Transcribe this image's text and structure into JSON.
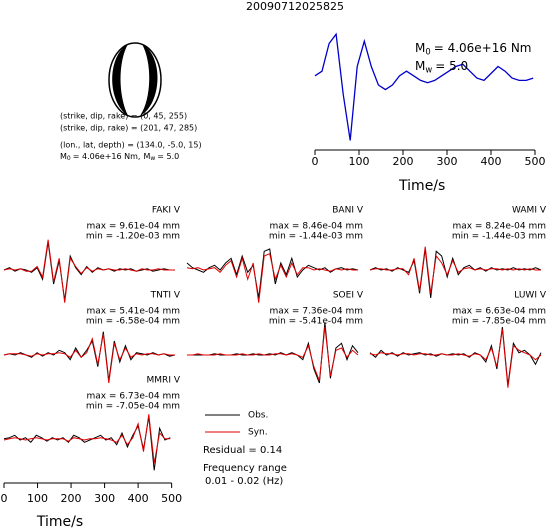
{
  "title": "20090712025825",
  "mechanism": {
    "lines": [
      "(strike, dip, rake) = (0, 45, 255)",
      "(strike, dip, rake) = (201, 47, 285)",
      "(lon., lat, depth) = (134.0, -5.0, 15)"
    ],
    "moment": [
      {
        "symbol": "M",
        "sub": "0",
        "text": "= 4.06e+16 Nm,"
      },
      {
        "symbol": "M",
        "sub": "w",
        "text": "= 5.0"
      }
    ]
  },
  "chart_data": [
    {
      "type": "line",
      "xlabel": "Time/s",
      "xlim": [
        0,
        510
      ],
      "xticks": [
        0,
        100,
        200,
        300,
        400,
        500
      ],
      "ylim": [
        -1.4,
        1.2
      ],
      "x": [
        0,
        16,
        32,
        48,
        64,
        80,
        96,
        112,
        128,
        144,
        160,
        176,
        192,
        208,
        224,
        240,
        256,
        272,
        288,
        304,
        320,
        336,
        352,
        368,
        384,
        400,
        416,
        432,
        448,
        464,
        480,
        496
      ],
      "series": [
        {
          "color": "#0000cc",
          "values": [
            0.1,
            0.2,
            0.8,
            1.0,
            -0.3,
            -1.3,
            0.3,
            0.85,
            0.3,
            -0.1,
            -0.2,
            -0.1,
            0.1,
            0.2,
            0.1,
            0.0,
            -0.05,
            0.0,
            0.1,
            0.2,
            0.3,
            0.35,
            0.2,
            0.05,
            0.0,
            0.15,
            0.3,
            0.2,
            0.05,
            0.0,
            0.0,
            0.05
          ]
        }
      ],
      "annotations": [
        {
          "symbol": "M",
          "sub": "0",
          "text": "= 4.06e+16 Nm"
        },
        {
          "symbol": "M",
          "sub": "w",
          "text": "= 5.0"
        }
      ]
    },
    {
      "type": "waveform",
      "station": "FAKI V",
      "max_label": "max = 9.61e-04 mm",
      "min_label": "min = -1.20e-03 mm",
      "ylim": [
        -1.5,
        1.5
      ],
      "series": [
        {
          "name": "Obs.",
          "color": "#000000",
          "values": [
            0,
            0.1,
            -0.05,
            0.05,
            0,
            -0.1,
            0.1,
            -0.4,
            1.2,
            -0.6,
            0.4,
            -1.3,
            0.6,
            0.1,
            -0.2,
            0.15,
            -0.1,
            0.1,
            0,
            0.05,
            -0.05,
            0.05,
            0,
            0.05,
            -0.05,
            0,
            0.05,
            -0.05,
            0,
            0.05,
            0,
            0
          ]
        },
        {
          "name": "Syn.",
          "color": "#e00000",
          "values": [
            0,
            0.05,
            0,
            0.05,
            -0.05,
            -0.05,
            0.15,
            -0.3,
            1.3,
            -0.5,
            0.5,
            -1.4,
            0.5,
            0.15,
            -0.15,
            0.1,
            -0.05,
            0.05,
            0,
            0.05,
            0,
            0,
            0.05,
            0,
            -0.05,
            0.05,
            0,
            0,
            0.05,
            0,
            0,
            0
          ]
        }
      ]
    },
    {
      "type": "waveform",
      "station": "BANI V",
      "max_label": "max = 8.46e-04 mm",
      "min_label": "min = -1.44e-03 mm",
      "ylim": [
        -1.5,
        1.5
      ],
      "series": [
        {
          "name": "Obs.",
          "color": "#000000",
          "values": [
            0.3,
            0.1,
            0,
            -0.1,
            0.1,
            0.2,
            0,
            0.3,
            0.5,
            -0.2,
            0.6,
            -0.1,
            0.2,
            -1.2,
            0.8,
            0.9,
            -0.6,
            0.3,
            -0.2,
            0.5,
            -0.3,
            0,
            0.2,
            0.1,
            0,
            0.1,
            -0.1,
            0.05,
            0.1,
            0,
            0.05,
            0
          ]
        },
        {
          "name": "Syn.",
          "color": "#e00000",
          "values": [
            0.1,
            0.05,
            0.1,
            0,
            0.05,
            0.1,
            -0.1,
            0.2,
            0.4,
            -0.3,
            0.5,
            -0.4,
            0.3,
            -1.4,
            0.6,
            0.7,
            -0.4,
            0.2,
            -0.3,
            0.3,
            -0.2,
            0.1,
            0.1,
            0,
            0.05,
            0,
            -0.05,
            0.05,
            0,
            0.05,
            0,
            0
          ]
        }
      ]
    },
    {
      "type": "waveform",
      "station": "WAMI V",
      "max_label": "max = 8.24e-04 mm",
      "min_label": "min = -1.44e-03 mm",
      "ylim": [
        -1.5,
        1.5
      ],
      "series": [
        {
          "name": "Obs.",
          "color": "#000000",
          "values": [
            0,
            0.1,
            0,
            0.05,
            -0.05,
            0.1,
            0,
            -0.1,
            0.4,
            -1.0,
            0.9,
            -1.2,
            0.8,
            0.6,
            -0.3,
            0.5,
            -0.2,
            0.1,
            0.2,
            0,
            0.1,
            -0.05,
            0.1,
            0,
            0.05,
            0,
            0.1,
            0,
            0.05,
            0,
            0.1,
            0
          ]
        },
        {
          "name": "Syn.",
          "color": "#e00000",
          "values": [
            0,
            0.05,
            0.05,
            0,
            0,
            0.05,
            0.05,
            -0.2,
            0.5,
            -0.9,
            1.0,
            -1.0,
            0.6,
            0.3,
            -0.2,
            0.4,
            -0.1,
            0.05,
            0.1,
            0,
            0.05,
            0,
            0.05,
            0.05,
            0,
            0.05,
            0,
            0.05,
            0,
            0.05,
            0,
            0
          ]
        }
      ]
    },
    {
      "type": "waveform",
      "station": "TNTI V",
      "max_label": "max = 5.41e-04 mm",
      "min_label": "min = -6.58e-04 mm",
      "ylim": [
        -1.5,
        1.5
      ],
      "series": [
        {
          "name": "Obs.",
          "color": "#000000",
          "values": [
            0,
            0.05,
            0,
            0.1,
            0,
            -0.1,
            0.1,
            -0.05,
            0.1,
            0,
            0.2,
            0.1,
            -0.2,
            0.3,
            -0.1,
            0.2,
            0.6,
            -0.5,
            1.0,
            -1.1,
            0.6,
            -0.3,
            0.4,
            -0.2,
            0.1,
            0.05,
            0,
            0.1,
            0,
            0.05,
            -0.05,
            0
          ]
        },
        {
          "name": "Syn.",
          "color": "#e00000",
          "values": [
            0,
            0.05,
            0.05,
            0.05,
            0,
            -0.05,
            0.05,
            0,
            0.05,
            0.05,
            0.1,
            0.05,
            -0.1,
            0.2,
            -0.1,
            0.1,
            0.7,
            -0.4,
            0.9,
            -1.2,
            0.5,
            -0.2,
            0.3,
            -0.1,
            0.05,
            0,
            0.05,
            0.05,
            0,
            0.05,
            0,
            0
          ]
        }
      ]
    },
    {
      "type": "waveform",
      "station": "SOEI V",
      "max_label": "max = 7.36e-04 mm",
      "min_label": "min = -5.41e-04 mm",
      "ylim": [
        -1.5,
        1.5
      ],
      "series": [
        {
          "name": "Obs.",
          "color": "#000000",
          "values": [
            0,
            0,
            0,
            0,
            0,
            0.05,
            0,
            0,
            0,
            0.05,
            0,
            0,
            0.05,
            0,
            0,
            0.05,
            0,
            0.1,
            0,
            0.1,
            0,
            -0.2,
            0.5,
            -0.6,
            -1.2,
            1.4,
            -1.0,
            0.3,
            0.5,
            -0.2,
            0.4,
            0.1
          ]
        },
        {
          "name": "Syn.",
          "color": "#e00000",
          "values": [
            0,
            0,
            0.05,
            0,
            0,
            0,
            0.05,
            0,
            0,
            0,
            0.05,
            0,
            0,
            0.05,
            0,
            0,
            0.05,
            0.05,
            0,
            0.05,
            0,
            -0.1,
            0.4,
            -0.5,
            -1.1,
            1.2,
            -0.9,
            0.2,
            0.3,
            -0.1,
            0.2,
            0
          ]
        }
      ]
    },
    {
      "type": "waveform",
      "station": "LUWI V",
      "max_label": "max = 6.63e-04 mm",
      "min_label": "min = -7.85e-04 mm",
      "ylim": [
        -1.5,
        1.5
      ],
      "series": [
        {
          "name": "Obs.",
          "color": "#000000",
          "values": [
            0.1,
            -0.1,
            0.2,
            0,
            0.1,
            -0.05,
            0.1,
            0,
            0.05,
            0.1,
            0,
            0.05,
            -0.05,
            0.05,
            0,
            0.05,
            0,
            0.05,
            -0.1,
            0.1,
            0,
            -0.3,
            0.4,
            -0.6,
            1.2,
            -1.3,
            0.5,
            0.1,
            0.2,
            0,
            -0.4,
            0.1
          ]
        },
        {
          "name": "Syn.",
          "color": "#e00000",
          "values": [
            0.05,
            0,
            0.1,
            0.05,
            0.05,
            0,
            0.05,
            0.05,
            0,
            0.05,
            0.05,
            0,
            0,
            0.05,
            0,
            0,
            0.05,
            0,
            -0.05,
            0.05,
            0,
            -0.2,
            0.3,
            -0.5,
            1.1,
            -1.4,
            0.4,
            0.2,
            0.1,
            0,
            -0.2,
            0
          ]
        }
      ]
    },
    {
      "type": "waveform",
      "station": "MMRI V",
      "max_label": "max = 6.73e-04 mm",
      "min_label": "min = -7.05e-04 mm",
      "ylim": [
        -1.5,
        1.5
      ],
      "xlabel": "Time/s",
      "xlim": [
        0,
        510
      ],
      "xticks": [
        0,
        100,
        200,
        300,
        400,
        500
      ],
      "x": [
        0,
        16,
        32,
        48,
        64,
        80,
        96,
        112,
        128,
        144,
        160,
        176,
        192,
        208,
        224,
        240,
        256,
        272,
        288,
        304,
        320,
        336,
        352,
        368,
        384,
        400,
        416,
        432,
        448,
        464,
        480,
        496
      ],
      "series": [
        {
          "name": "Obs.",
          "color": "#000000",
          "values": [
            0.05,
            0.1,
            0.2,
            0,
            0.1,
            -0.1,
            0.2,
            0.1,
            -0.05,
            0.1,
            0,
            0.1,
            -0.1,
            0.2,
            0.1,
            -0.1,
            0,
            0.1,
            0.2,
            0,
            0.1,
            -0.2,
            0.3,
            -0.3,
            0.2,
            0.6,
            -0.4,
            1.0,
            -1.3,
            0.5,
            0,
            0.1
          ]
        },
        {
          "name": "Syn.",
          "color": "#e00000",
          "values": [
            0,
            0.05,
            0.1,
            0.05,
            0,
            0.05,
            0.1,
            0.05,
            0,
            0.05,
            0.05,
            0.05,
            -0.05,
            0.1,
            0.05,
            0,
            0.05,
            0.05,
            0.1,
            0.05,
            0,
            -0.1,
            0.2,
            -0.2,
            0.1,
            0.7,
            -0.5,
            1.1,
            -1.0,
            0.3,
            0.05,
            0.05
          ]
        }
      ]
    }
  ],
  "notes": [
    "Residual = 0.14",
    "Frequency range",
    "0.01 - 0.02 (Hz)"
  ]
}
